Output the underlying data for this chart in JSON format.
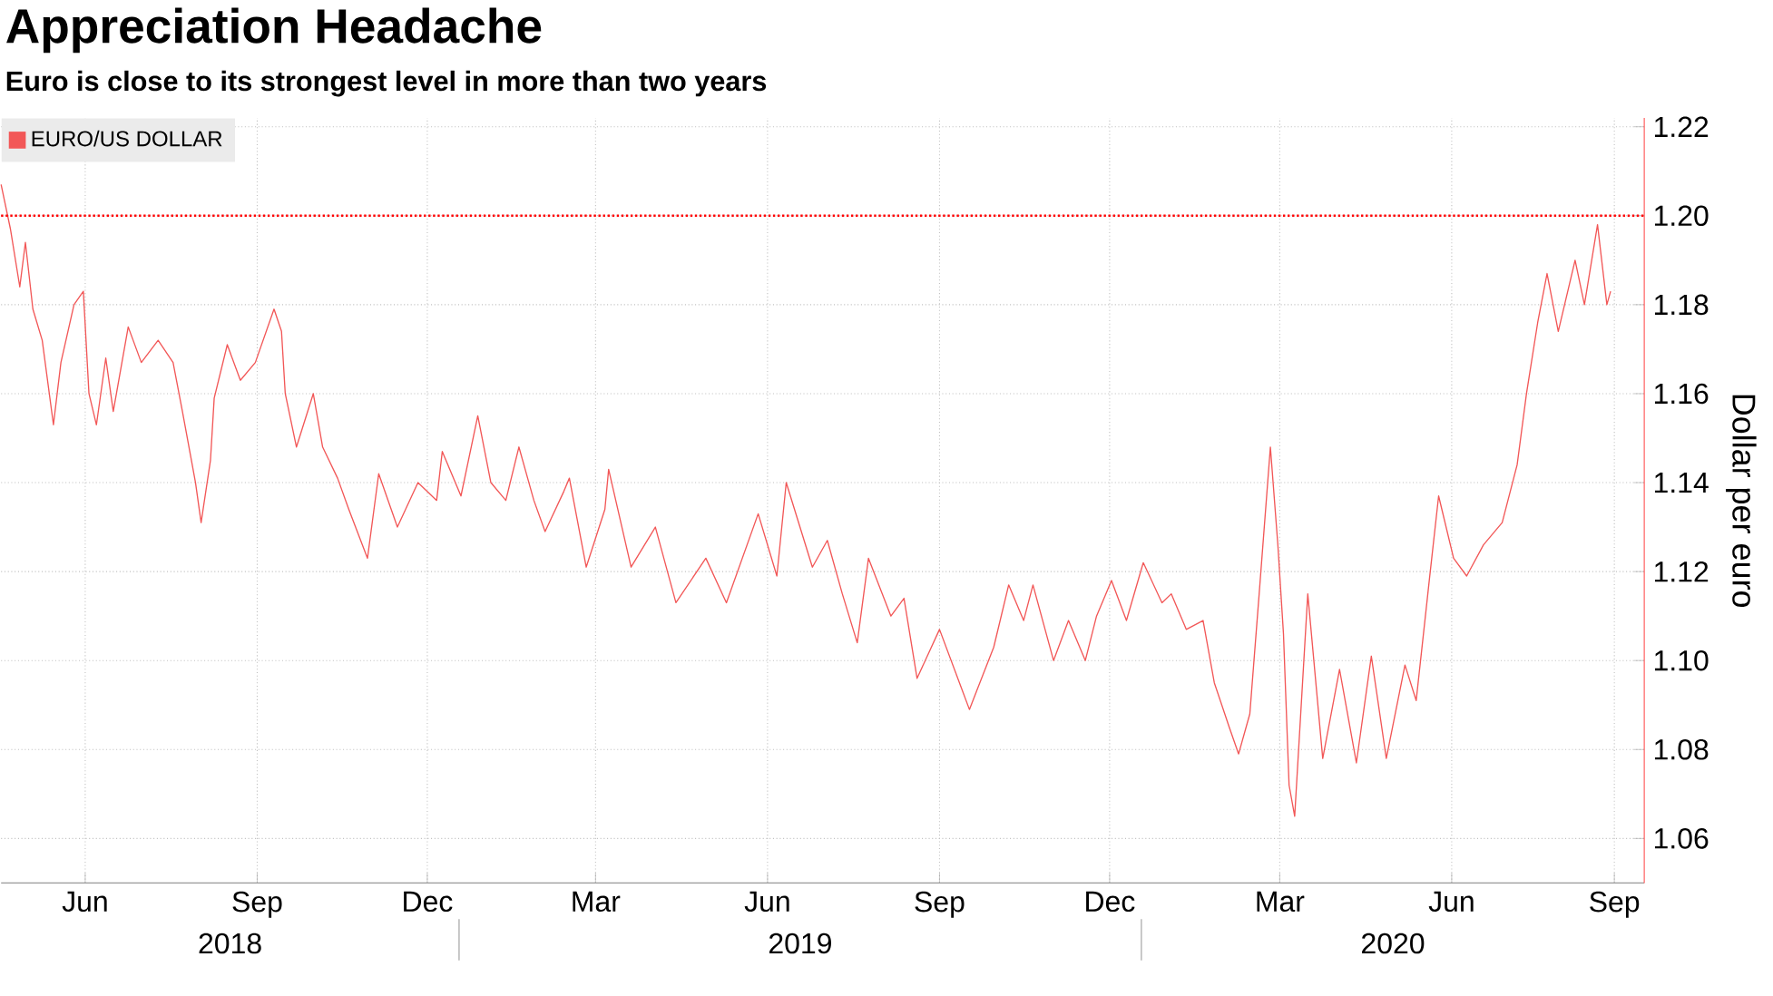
{
  "chart_data": {
    "type": "line",
    "title": "Appreciation Headache",
    "subtitle": "Euro is close to its strongest level in more than two years",
    "ylabel": "Dollar per euro",
    "annotations": [
      "2018",
      "2019",
      "2020"
    ],
    "xlim": [
      "2018-05-01",
      "2020-09-26"
    ],
    "xticks": [
      {
        "value": "2018-06-15",
        "label": "Jun"
      },
      {
        "value": "2018-09-15",
        "label": "Sep"
      },
      {
        "value": "2018-12-15",
        "label": "Dec"
      },
      {
        "value": "2019-03-15",
        "label": "Mar"
      },
      {
        "value": "2019-06-15",
        "label": "Jun"
      },
      {
        "value": "2019-09-15",
        "label": "Sep"
      },
      {
        "value": "2019-12-15",
        "label": "Dec"
      },
      {
        "value": "2020-03-15",
        "label": "Mar"
      },
      {
        "value": "2020-06-15",
        "label": "Jun"
      },
      {
        "value": "2020-09-10",
        "label": "Sep"
      }
    ],
    "ylim": [
      1.05,
      1.222
    ],
    "yticks": [
      {
        "value": 1.06,
        "label": "1.06"
      },
      {
        "value": 1.08,
        "label": "1.08"
      },
      {
        "value": 1.1,
        "label": "1.10"
      },
      {
        "value": 1.12,
        "label": "1.12"
      },
      {
        "value": 1.14,
        "label": "1.14"
      },
      {
        "value": 1.16,
        "label": "1.16"
      },
      {
        "value": 1.18,
        "label": "1.18"
      },
      {
        "value": 1.2,
        "label": "1.20"
      },
      {
        "value": 1.22,
        "label": "1.22"
      }
    ],
    "x": [
      "2018-05-01",
      "2018-05-06",
      "2018-05-11",
      "2018-05-14",
      "2018-05-18",
      "2018-05-23",
      "2018-05-29",
      "2018-06-02",
      "2018-06-09",
      "2018-06-14",
      "2018-06-17",
      "2018-06-21",
      "2018-06-26",
      "2018-06-30",
      "2018-07-08",
      "2018-07-15",
      "2018-07-24",
      "2018-08-01",
      "2018-08-06",
      "2018-08-13",
      "2018-08-16",
      "2018-08-21",
      "2018-08-23",
      "2018-08-30",
      "2018-09-06",
      "2018-09-14",
      "2018-09-24",
      "2018-09-28",
      "2018-09-30",
      "2018-10-06",
      "2018-10-15",
      "2018-10-20",
      "2018-10-28",
      "2018-11-03",
      "2018-11-13",
      "2018-11-19",
      "2018-11-29",
      "2018-12-10",
      "2018-12-20",
      "2018-12-23",
      "2019-01-02",
      "2019-01-11",
      "2019-01-18",
      "2019-01-26",
      "2019-02-02",
      "2019-02-10",
      "2019-02-16",
      "2019-02-26",
      "2019-03-01",
      "2019-03-10",
      "2019-03-20",
      "2019-03-22",
      "2019-04-03",
      "2019-04-16",
      "2019-04-27",
      "2019-05-13",
      "2019-05-24",
      "2019-06-10",
      "2019-06-20",
      "2019-06-25",
      "2019-07-09",
      "2019-07-17",
      "2019-07-25",
      "2019-08-02",
      "2019-08-08",
      "2019-08-20",
      "2019-08-27",
      "2019-09-03",
      "2019-09-15",
      "2019-10-01",
      "2019-10-14",
      "2019-10-22",
      "2019-10-30",
      "2019-11-04",
      "2019-11-15",
      "2019-11-23",
      "2019-12-02",
      "2019-12-08",
      "2019-12-16",
      "2019-12-24",
      "2020-01-02",
      "2020-01-12",
      "2020-01-17",
      "2020-01-25",
      "2020-02-03",
      "2020-02-09",
      "2020-02-17",
      "2020-02-22",
      "2020-02-28",
      "2020-03-04",
      "2020-03-10",
      "2020-03-14",
      "2020-03-17",
      "2020-03-20",
      "2020-03-23",
      "2020-03-30",
      "2020-04-07",
      "2020-04-16",
      "2020-04-25",
      "2020-05-03",
      "2020-05-11",
      "2020-05-21",
      "2020-05-27",
      "2020-06-03",
      "2020-06-08",
      "2020-06-16",
      "2020-06-23",
      "2020-07-02",
      "2020-07-12",
      "2020-07-20",
      "2020-07-25",
      "2020-07-31",
      "2020-08-05",
      "2020-08-11",
      "2020-08-20",
      "2020-08-25",
      "2020-09-01",
      "2020-09-06",
      "2020-09-08"
    ],
    "series": [
      {
        "name": "EURO/US DOLLAR",
        "color": "#f25757",
        "values": [
          1.207,
          1.197,
          1.184,
          1.194,
          1.179,
          1.172,
          1.153,
          1.167,
          1.18,
          1.183,
          1.16,
          1.153,
          1.168,
          1.156,
          1.175,
          1.167,
          1.172,
          1.167,
          1.156,
          1.14,
          1.131,
          1.145,
          1.159,
          1.171,
          1.163,
          1.167,
          1.179,
          1.174,
          1.16,
          1.148,
          1.16,
          1.148,
          1.141,
          1.134,
          1.123,
          1.142,
          1.13,
          1.14,
          1.136,
          1.147,
          1.137,
          1.155,
          1.14,
          1.136,
          1.148,
          1.136,
          1.129,
          1.138,
          1.141,
          1.121,
          1.134,
          1.143,
          1.121,
          1.13,
          1.113,
          1.123,
          1.113,
          1.133,
          1.119,
          1.14,
          1.121,
          1.127,
          1.115,
          1.104,
          1.123,
          1.11,
          1.114,
          1.096,
          1.107,
          1.089,
          1.103,
          1.117,
          1.109,
          1.117,
          1.1,
          1.109,
          1.1,
          1.11,
          1.118,
          1.109,
          1.122,
          1.113,
          1.115,
          1.107,
          1.109,
          1.095,
          1.085,
          1.079,
          1.088,
          1.115,
          1.148,
          1.126,
          1.106,
          1.072,
          1.065,
          1.115,
          1.078,
          1.098,
          1.077,
          1.101,
          1.078,
          1.099,
          1.091,
          1.118,
          1.137,
          1.123,
          1.119,
          1.126,
          1.131,
          1.144,
          1.16,
          1.176,
          1.187,
          1.174,
          1.19,
          1.18,
          1.198,
          1.18,
          1.183
        ]
      }
    ],
    "ref_lines": [
      {
        "axis": "y",
        "value": 1.2,
        "color": "#ff0000",
        "line_style": "dotted"
      }
    ],
    "grid": true,
    "legend": "top left",
    "marker": "none",
    "line_style": "solid"
  }
}
